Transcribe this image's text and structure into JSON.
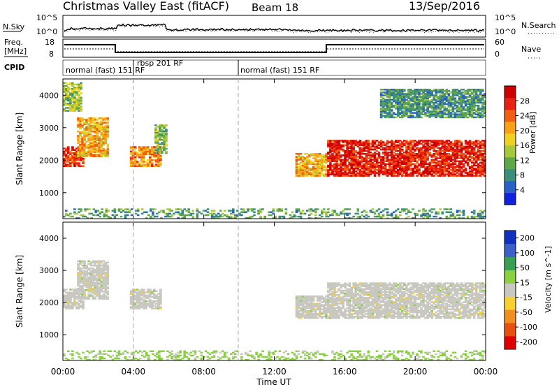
{
  "header": {
    "station": "Christmas Valley East (fitACF)",
    "beam": "Beam 18",
    "date": "13/Sep/2016"
  },
  "top_panels": {
    "nsky_label": "N.Sky",
    "nsearch_label": "N.Search",
    "nsky_ticks": [
      "10^5",
      "10^0"
    ],
    "nsearch_ticks": [
      "10^5",
      "10^0"
    ],
    "freq_label": [
      "Freq.",
      "[MHz]"
    ],
    "freq_ticks": [
      "18",
      "8"
    ],
    "nave_label": "Nave",
    "nave_ticks": [
      "60",
      "0"
    ],
    "cpid_label": "CPID",
    "cpid_segments": [
      "normal (fast) 151 RF",
      "rbsp 201 RF",
      "normal (fast) 151 RF"
    ]
  },
  "chart_data": [
    {
      "type": "heatmap",
      "title": "",
      "xlabel": "",
      "ylabel": "Slant Range [km]",
      "x_ticks": [
        "00:00",
        "04:00",
        "08:00",
        "12:00",
        "16:00",
        "20:00",
        "00:00"
      ],
      "y_ticks": [
        1000,
        2000,
        3000,
        4000
      ],
      "ylim": [
        200,
        4500
      ],
      "colorbar": {
        "label": "Power [dB]",
        "ticks": [
          4,
          8,
          12,
          16,
          20,
          24,
          28
        ],
        "range": [
          0,
          32
        ],
        "colors": [
          "#1020e0",
          "#2a60c8",
          "#3b8f7a",
          "#5fa84a",
          "#a6c83a",
          "#f0d020",
          "#f8a018",
          "#f06010",
          "#e82010",
          "#d00000"
        ]
      },
      "regions": [
        {
          "t": [
            0.0,
            1.1
          ],
          "range": [
            1800,
            2400
          ],
          "dB": 26
        },
        {
          "t": [
            0.8,
            2.6
          ],
          "range": [
            2100,
            3300
          ],
          "dB": 20
        },
        {
          "t": [
            0.0,
            1.0
          ],
          "range": [
            3500,
            4400
          ],
          "dB": 14
        },
        {
          "t": [
            3.8,
            5.5
          ],
          "range": [
            1800,
            2400
          ],
          "dB": 22
        },
        {
          "t": [
            5.2,
            5.9
          ],
          "range": [
            2200,
            3100
          ],
          "dB": 12
        },
        {
          "t": [
            13.2,
            14.9
          ],
          "range": [
            1500,
            2200
          ],
          "dB": 20
        },
        {
          "t": [
            15.0,
            24.0
          ],
          "range": [
            1500,
            2600
          ],
          "dB": 28
        },
        {
          "t": [
            18.0,
            24.0
          ],
          "range": [
            3300,
            4200
          ],
          "dB": 9
        },
        {
          "t": [
            0.0,
            24.0
          ],
          "range": [
            200,
            500
          ],
          "dB": 10
        }
      ]
    },
    {
      "type": "heatmap",
      "title": "",
      "xlabel": "Time UT",
      "ylabel": "Slant Range [km]",
      "x_ticks": [
        "00:00",
        "04:00",
        "08:00",
        "12:00",
        "16:00",
        "20:00",
        "00:00"
      ],
      "y_ticks": [
        1000,
        2000,
        3000,
        4000
      ],
      "ylim": [
        200,
        4500
      ],
      "colorbar": {
        "label": "Velocity [m s^-1]",
        "ticks": [
          200,
          100,
          50,
          15,
          -15,
          -50,
          -100,
          -200
        ],
        "range": [
          -250,
          250
        ],
        "colors": [
          "#1030c0",
          "#3c60c8",
          "#38a050",
          "#8ad040",
          "#c8c8c0",
          "#f8d030",
          "#f09020",
          "#e85010",
          "#e00000"
        ]
      },
      "regions": [
        {
          "t": [
            0.0,
            1.1
          ],
          "range": [
            1800,
            2400
          ],
          "v": 0
        },
        {
          "t": [
            0.8,
            2.6
          ],
          "range": [
            2100,
            3300
          ],
          "v": 0
        },
        {
          "t": [
            3.8,
            5.5
          ],
          "range": [
            1800,
            2400
          ],
          "v": 0
        },
        {
          "t": [
            13.2,
            14.9
          ],
          "range": [
            1500,
            2200
          ],
          "v": 0
        },
        {
          "t": [
            15.0,
            24.0
          ],
          "range": [
            1500,
            2600
          ],
          "v": 0
        },
        {
          "t": [
            0.0,
            24.0
          ],
          "range": [
            200,
            500
          ],
          "v": 40
        }
      ]
    }
  ]
}
